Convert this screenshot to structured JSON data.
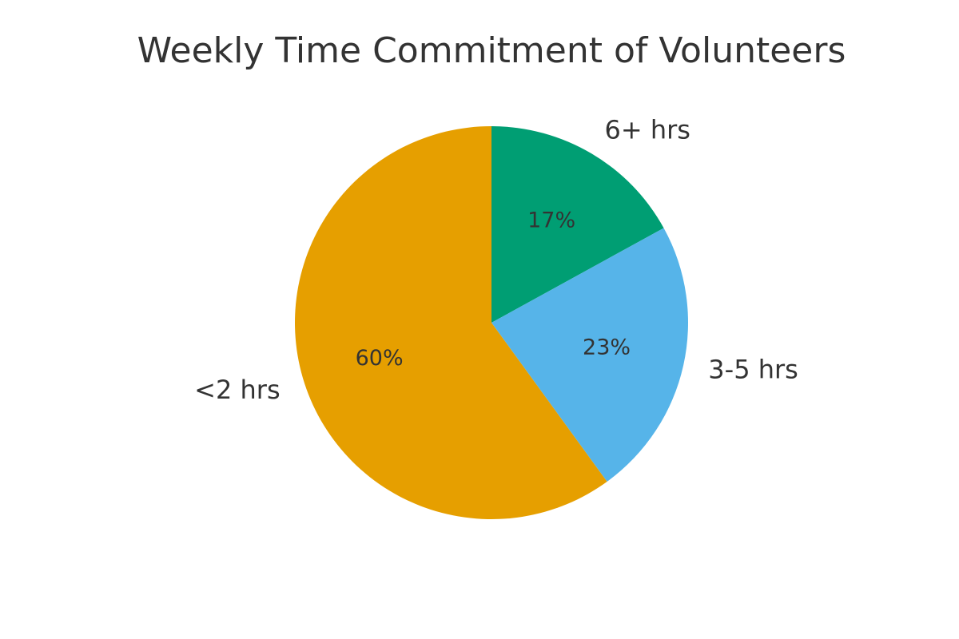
{
  "chart_data": {
    "type": "pie",
    "title": "Weekly Time Commitment of Volunteers",
    "categories": [
      "6+ hrs",
      "3-5 hrs",
      "<2 hrs"
    ],
    "values": [
      17,
      23,
      60
    ],
    "percent_labels": [
      "17%",
      "23%",
      "60%"
    ],
    "colors": [
      "#009E73",
      "#56B4E9",
      "#E69F00"
    ],
    "start_angle": "top",
    "direction": "clockwise",
    "legend": "none"
  }
}
